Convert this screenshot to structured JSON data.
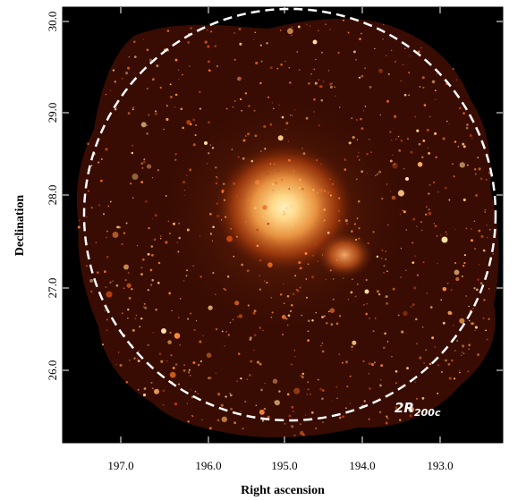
{
  "figure": {
    "xlabel": "Right ascension",
    "ylabel": "Declination",
    "x_ticks": [
      "197.0",
      "196.0",
      "195.0",
      "194.0",
      "193.0"
    ],
    "y_ticks": [
      "30.0",
      "29.0",
      "28.0",
      "27.0",
      "26.0"
    ],
    "annotation": {
      "main": "2R",
      "subscript": "200c"
    },
    "colors": {
      "sky_background": "#000000",
      "emission_faint": "#3a0c02",
      "emission_mid": "#c2470f",
      "emission_bright": "#ffd98a",
      "circle": "#ffffff"
    }
  }
}
